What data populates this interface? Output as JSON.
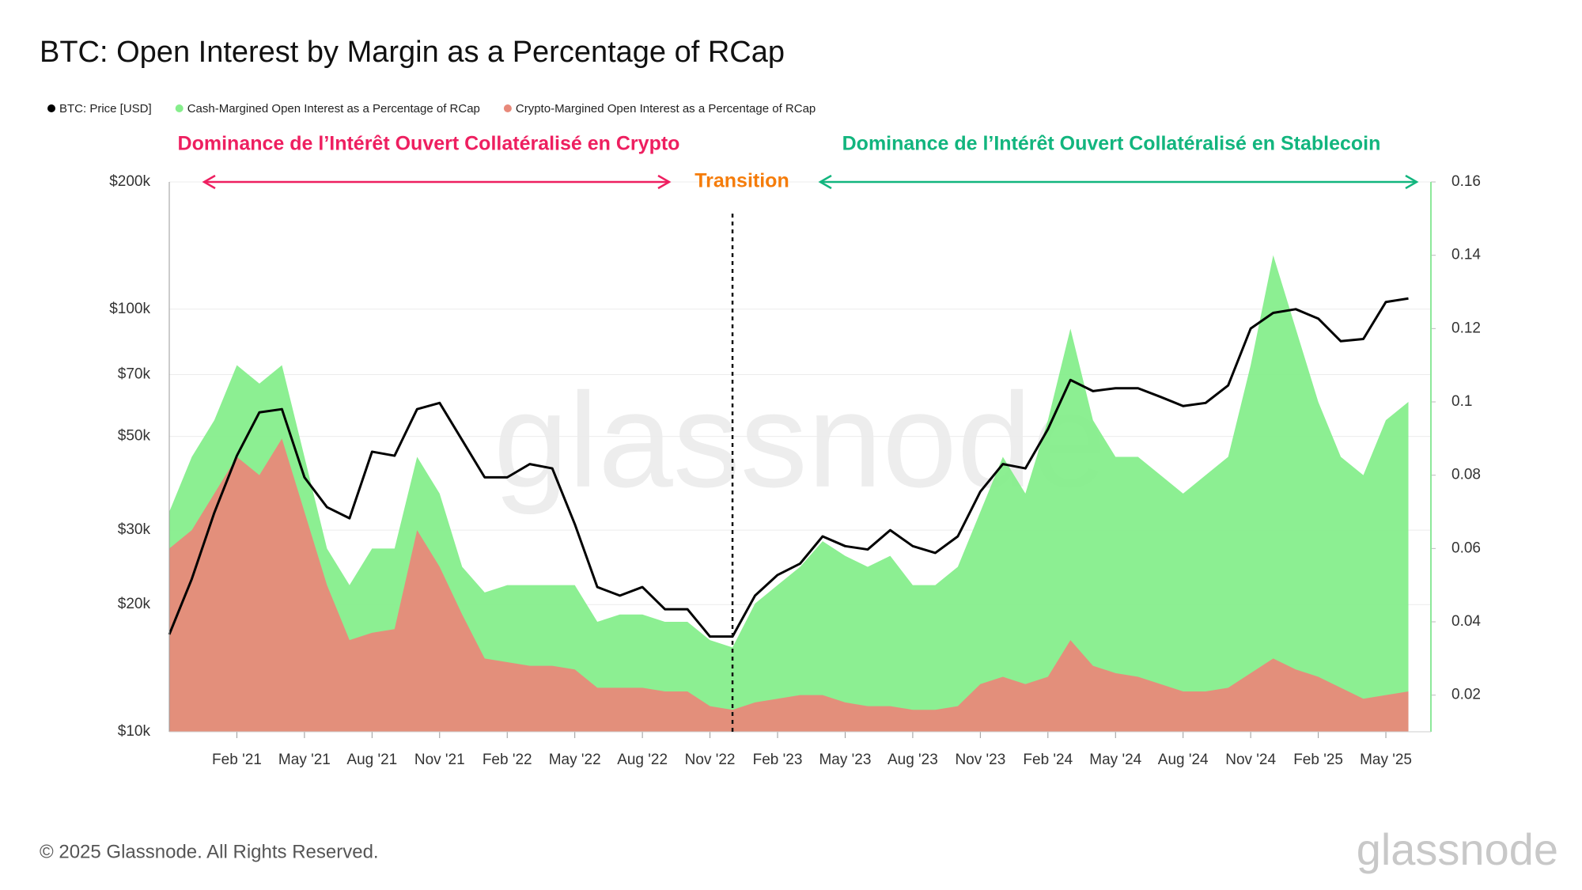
{
  "chart_data": {
    "type": "line",
    "title": "BTC: Open Interest by Margin as a Percentage of RCap",
    "footer": "© 2025 Glassnode. All Rights Reserved.",
    "logo": "glassnode",
    "watermark": "glassnode",
    "annotations": [
      {
        "text": "Dominance de l’Intérêt Ouvert Collatéralisé en Crypto",
        "color": "#ee1f60"
      },
      {
        "text": "Transition",
        "color": "#f57c0a",
        "x": "2022-12"
      },
      {
        "text": "Dominance de l’Intérêt Ouvert Collatéralisé en Stablecoin",
        "color": "#12b57e"
      }
    ],
    "x": [
      "2020-11",
      "2020-12",
      "2021-01",
      "2021-02",
      "2021-03",
      "2021-04",
      "2021-05",
      "2021-06",
      "2021-07",
      "2021-08",
      "2021-09",
      "2021-10",
      "2021-11",
      "2021-12",
      "2022-01",
      "2022-02",
      "2022-03",
      "2022-04",
      "2022-05",
      "2022-06",
      "2022-07",
      "2022-08",
      "2022-09",
      "2022-10",
      "2022-11",
      "2022-12",
      "2023-01",
      "2023-02",
      "2023-03",
      "2023-04",
      "2023-05",
      "2023-06",
      "2023-07",
      "2023-08",
      "2023-09",
      "2023-10",
      "2023-11",
      "2023-12",
      "2024-01",
      "2024-02",
      "2024-03",
      "2024-04",
      "2024-05",
      "2024-06",
      "2024-07",
      "2024-08",
      "2024-09",
      "2024-10",
      "2024-11",
      "2024-12",
      "2025-01",
      "2025-02",
      "2025-03",
      "2025-04",
      "2025-05",
      "2025-06"
    ],
    "xlim": [
      "2020-11",
      "2025-07"
    ],
    "xticks": [
      {
        "value": "2021-02",
        "label": "Feb '21"
      },
      {
        "value": "2021-05",
        "label": "May '21"
      },
      {
        "value": "2021-08",
        "label": "Aug '21"
      },
      {
        "value": "2021-11",
        "label": "Nov '21"
      },
      {
        "value": "2022-02",
        "label": "Feb '22"
      },
      {
        "value": "2022-05",
        "label": "May '22"
      },
      {
        "value": "2022-08",
        "label": "Aug '22"
      },
      {
        "value": "2022-11",
        "label": "Nov '22"
      },
      {
        "value": "2023-02",
        "label": "Feb '23"
      },
      {
        "value": "2023-05",
        "label": "May '23"
      },
      {
        "value": "2023-08",
        "label": "Aug '23"
      },
      {
        "value": "2023-11",
        "label": "Nov '23"
      },
      {
        "value": "2024-02",
        "label": "Feb '24"
      },
      {
        "value": "2024-05",
        "label": "May '24"
      },
      {
        "value": "2024-08",
        "label": "Aug '24"
      },
      {
        "value": "2024-11",
        "label": "Nov '24"
      },
      {
        "value": "2025-02",
        "label": "Feb '25"
      },
      {
        "value": "2025-05",
        "label": "May '25"
      }
    ],
    "ylim": [
      10000,
      200000
    ],
    "yscale": "log",
    "yticks": [
      {
        "value": 10000,
        "label": "$10k"
      },
      {
        "value": 20000,
        "label": "$20k"
      },
      {
        "value": 30000,
        "label": "$30k"
      },
      {
        "value": 50000,
        "label": "$50k"
      },
      {
        "value": 70000,
        "label": "$70k"
      },
      {
        "value": 100000,
        "label": "$100k"
      },
      {
        "value": 200000,
        "label": "$200k"
      }
    ],
    "y2lim": [
      0.01,
      0.16
    ],
    "y2ticks": [
      0.02,
      0.04,
      0.06,
      0.08,
      {
        "value": 0.1,
        "label": "0.1"
      },
      0.12,
      0.14,
      0.16
    ],
    "grid": true,
    "series": [
      {
        "name": "BTC: Price [USD]",
        "color": "#000000",
        "axis": "y",
        "values": [
          17000,
          23000,
          33000,
          45000,
          57000,
          58000,
          40000,
          34000,
          32000,
          46000,
          45000,
          58000,
          60000,
          49000,
          40000,
          40000,
          43000,
          42000,
          31000,
          22000,
          21000,
          22000,
          19500,
          19500,
          16800,
          16800,
          21000,
          23500,
          25000,
          29000,
          27500,
          27000,
          30000,
          27500,
          26500,
          29000,
          37000,
          43000,
          42000,
          52000,
          68000,
          64000,
          65000,
          65000,
          62000,
          59000,
          60000,
          66000,
          90000,
          98000,
          100000,
          95000,
          84000,
          85000,
          104000,
          106000
        ]
      },
      {
        "name": "Cash-Margined Open Interest as a Percentage of RCap",
        "color": "#86ee8c",
        "axis": "y2",
        "values": [
          0.07,
          0.085,
          0.095,
          0.11,
          0.105,
          0.11,
          0.085,
          0.06,
          0.05,
          0.06,
          0.06,
          0.085,
          0.075,
          0.055,
          0.048,
          0.05,
          0.05,
          0.05,
          0.05,
          0.04,
          0.042,
          0.042,
          0.04,
          0.04,
          0.035,
          0.033,
          0.045,
          0.05,
          0.055,
          0.062,
          0.058,
          0.055,
          0.058,
          0.05,
          0.05,
          0.055,
          0.07,
          0.085,
          0.075,
          0.095,
          0.12,
          0.095,
          0.085,
          0.085,
          0.08,
          0.075,
          0.08,
          0.085,
          0.11,
          0.14,
          0.12,
          0.1,
          0.085,
          0.08,
          0.095,
          0.1
        ]
      },
      {
        "name": "Crypto-Margined Open Interest as a Percentage of RCap",
        "color": "#e8897a",
        "axis": "y2",
        "values": [
          0.06,
          0.065,
          0.075,
          0.085,
          0.08,
          0.09,
          0.07,
          0.05,
          0.035,
          0.037,
          0.038,
          0.065,
          0.055,
          0.042,
          0.03,
          0.029,
          0.028,
          0.028,
          0.027,
          0.022,
          0.022,
          0.022,
          0.021,
          0.021,
          0.017,
          0.016,
          0.018,
          0.019,
          0.02,
          0.02,
          0.018,
          0.017,
          0.017,
          0.016,
          0.016,
          0.017,
          0.023,
          0.025,
          0.023,
          0.025,
          0.035,
          0.028,
          0.026,
          0.025,
          0.023,
          0.021,
          0.021,
          0.022,
          0.026,
          0.03,
          0.027,
          0.025,
          0.022,
          0.019,
          0.02,
          0.021
        ]
      }
    ]
  }
}
